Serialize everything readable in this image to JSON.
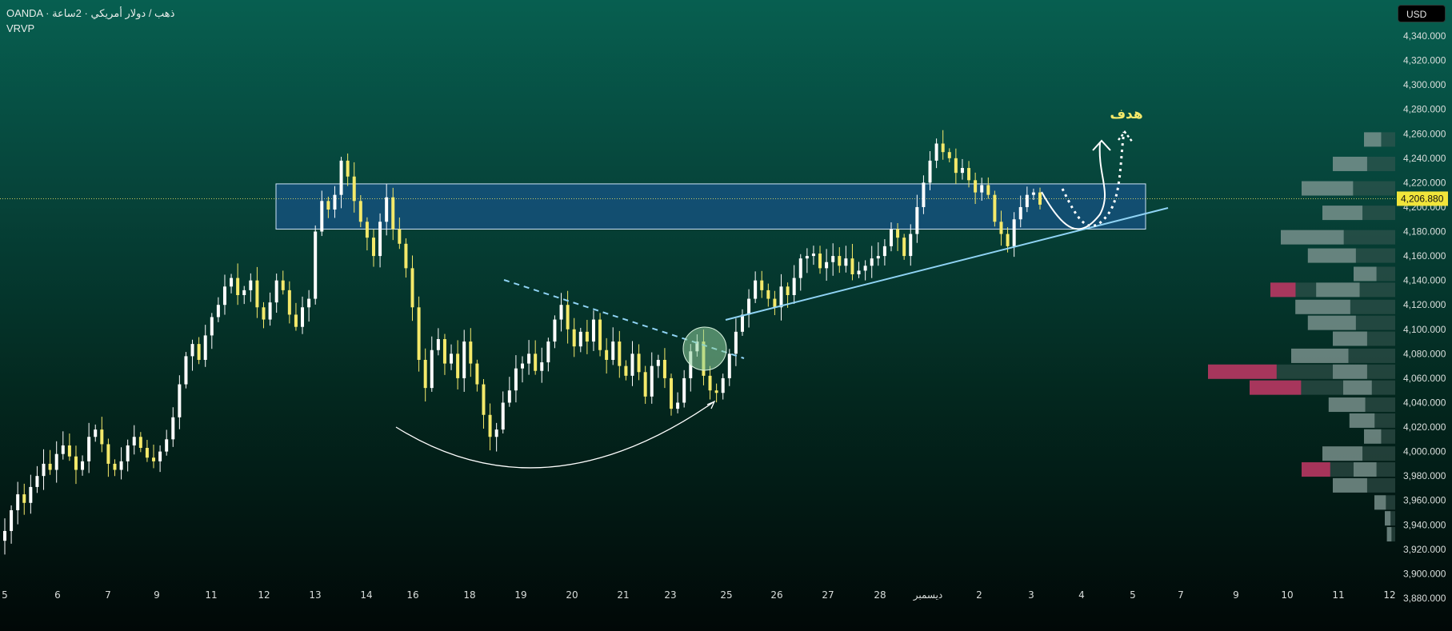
{
  "header": {
    "title": "OANDA · ذهب / دولار أمريكي · 2ساعة",
    "indicator": "VRVP"
  },
  "currency_button": "USD",
  "price_axis": {
    "ticks": [
      "4,340.000",
      "4,320.000",
      "4,300.000",
      "4,280.000",
      "4,260.000",
      "4,240.000",
      "4,220.000",
      "4,200.000",
      "4,180.000",
      "4,160.000",
      "4,140.000",
      "4,120.000",
      "4,100.000",
      "4,080.000",
      "4,060.000",
      "4,040.000",
      "4,020.000",
      "4,000.000",
      "3,980.000",
      "3,960.000",
      "3,940.000",
      "3,920.000",
      "3,900.000",
      "3,880.000"
    ],
    "current_price": "4,206.880"
  },
  "time_axis": {
    "labels": [
      "5",
      "6",
      "7",
      "9",
      "11",
      "12",
      "13",
      "14",
      "16",
      "18",
      "19",
      "20",
      "21",
      "23",
      "25",
      "26",
      "27",
      "28",
      "ديسمبر",
      "2",
      "3",
      "4",
      "5",
      "7",
      "9",
      "10",
      "11",
      "12"
    ]
  },
  "annotations": {
    "target_label": "هدف"
  },
  "colors": {
    "candle_up": "#ffffff",
    "candle_down": "#f4e96a",
    "zone_fill": "#1e5aa0",
    "trendline": "#8fd3f4",
    "profile_up": "#9fb3ae",
    "profile_down": "#e0306a",
    "target_text": "#f4e96a"
  },
  "chart_data": {
    "type": "candlestick",
    "symbol": "OANDA",
    "yrange": [
      3880,
      4340
    ],
    "resistance_zone": [
      4182,
      4219
    ],
    "current_price": 4206.88,
    "closes": [
      3935,
      3952,
      3965,
      3958,
      3971,
      3980,
      3990,
      3985,
      3998,
      4005,
      3996,
      3985,
      3992,
      4012,
      4018,
      4006,
      3990,
      3985,
      3992,
      4005,
      4012,
      4003,
      3995,
      3992,
      4000,
      4010,
      4028,
      4055,
      4078,
      4088,
      4075,
      4095,
      4110,
      4120,
      4135,
      4142,
      4128,
      4132,
      4140,
      4118,
      4108,
      4122,
      4140,
      4132,
      4112,
      4102,
      4118,
      4125,
      4180,
      4205,
      4198,
      4210,
      4238,
      4225,
      4205,
      4188,
      4175,
      4160,
      4188,
      4208,
      4182,
      4170,
      4150,
      4118,
      4075,
      4052,
      4083,
      4092,
      4072,
      4080,
      4060,
      4090,
      4072,
      4055,
      4030,
      4012,
      4018,
      4040,
      4050,
      4068,
      4072,
      4080,
      4066,
      4073,
      4090,
      4108,
      4120,
      4100,
      4086,
      4098,
      4090,
      4108,
      4083,
      4075,
      4090,
      4070,
      4062,
      4080,
      4065,
      4045,
      4070,
      4075,
      4060,
      4035,
      4040,
      4060,
      4082,
      4090,
      4062,
      4050,
      4048,
      4060,
      4080,
      4098,
      4112,
      4125,
      4140,
      4132,
      4125,
      4118,
      4135,
      4128,
      4142,
      4158,
      4160,
      4162,
      4150,
      4155,
      4160,
      4152,
      4158,
      4145,
      4148,
      4152,
      4158,
      4160,
      4168,
      4182,
      4175,
      4160,
      4178,
      4200,
      4220,
      4238,
      4252,
      4245,
      4240,
      4228,
      4232,
      4222,
      4212,
      4218,
      4210,
      4188,
      4178,
      4168,
      4190,
      4200,
      4210,
      4212,
      4202
    ],
    "volume_profile": [
      {
        "price": 4255,
        "up": 0.15,
        "down": 0.0
      },
      {
        "price": 4235,
        "up": 0.3,
        "down": 0.0
      },
      {
        "price": 4215,
        "up": 0.45,
        "down": 0.0
      },
      {
        "price": 4195,
        "up": 0.35,
        "down": 0.0
      },
      {
        "price": 4175,
        "up": 0.55,
        "down": 0.0
      },
      {
        "price": 4160,
        "up": 0.42,
        "down": 0.0
      },
      {
        "price": 4145,
        "up": 0.2,
        "down": 0.0
      },
      {
        "price": 4132,
        "up": 0.38,
        "down": 0.22
      },
      {
        "price": 4118,
        "up": 0.48,
        "down": 0.0
      },
      {
        "price": 4105,
        "up": 0.42,
        "down": 0.0
      },
      {
        "price": 4092,
        "up": 0.3,
        "down": 0.0
      },
      {
        "price": 4078,
        "up": 0.5,
        "down": 0.0
      },
      {
        "price": 4065,
        "up": 0.3,
        "down": 0.6
      },
      {
        "price": 4052,
        "up": 0.25,
        "down": 0.45
      },
      {
        "price": 4038,
        "up": 0.32,
        "down": 0.0
      },
      {
        "price": 4025,
        "up": 0.22,
        "down": 0.0
      },
      {
        "price": 4012,
        "up": 0.15,
        "down": 0.0
      },
      {
        "price": 3998,
        "up": 0.35,
        "down": 0.0
      },
      {
        "price": 3985,
        "up": 0.2,
        "down": 0.25
      },
      {
        "price": 3972,
        "up": 0.3,
        "down": 0.0
      },
      {
        "price": 3958,
        "up": 0.1,
        "down": 0.0
      },
      {
        "price": 3945,
        "up": 0.05,
        "down": 0.0
      },
      {
        "price": 3932,
        "up": 0.04,
        "down": 0.0
      }
    ]
  }
}
